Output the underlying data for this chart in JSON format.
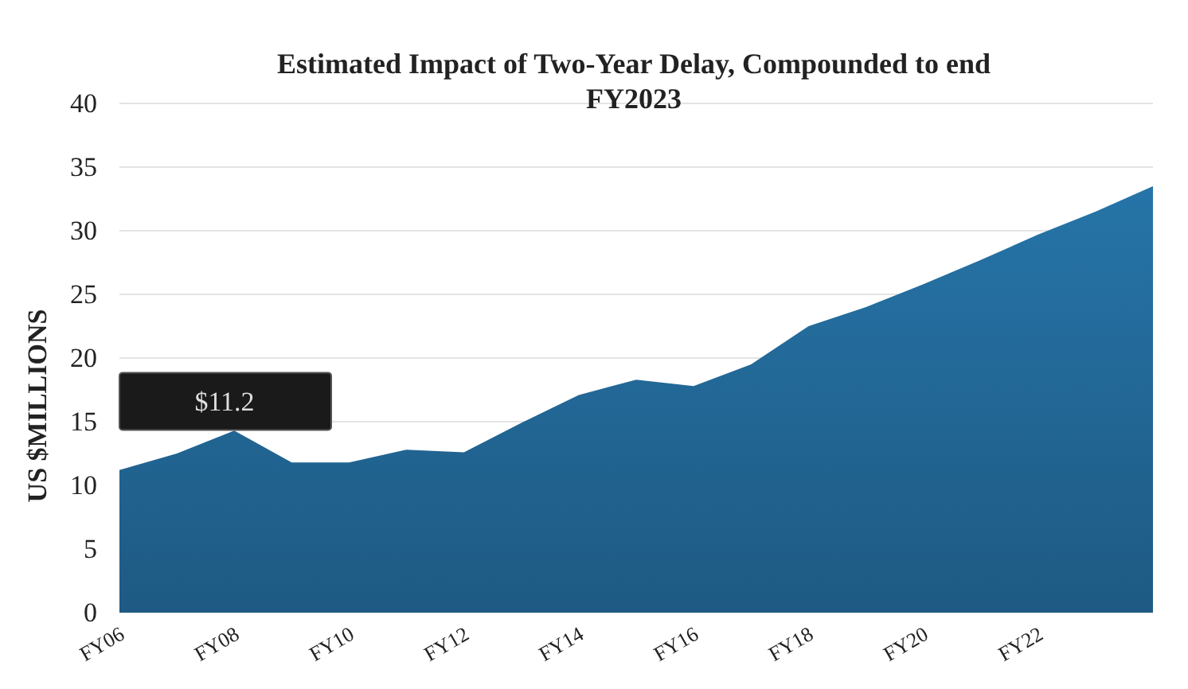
{
  "chart_data": {
    "type": "area",
    "title": "Estimated Impact of Two-Year Delay, Compounded to end FY2023",
    "ylabel": "US $MILLIONS",
    "categories": [
      "FY06",
      null,
      "FY08",
      null,
      "FY10",
      null,
      "FY12",
      null,
      "FY14",
      null,
      "FY16",
      null,
      "FY18",
      null,
      "FY20",
      null,
      "FY22",
      null,
      null
    ],
    "series": [
      {
        "color": "#236a9a",
        "values": [
          11.2,
          12.5,
          14.3,
          11.8,
          11.8,
          12.8,
          12.6,
          14.9,
          17.1,
          18.3,
          17.8,
          19.5,
          22.5,
          24.0,
          25.8,
          27.7,
          29.7,
          31.5,
          33.5
        ]
      }
    ],
    "ylim": [
      0,
      40
    ],
    "yticks": [
      0,
      5,
      10,
      15,
      20,
      25,
      30,
      35,
      40
    ],
    "grid": "y",
    "annotations": [
      "$11.2"
    ]
  }
}
